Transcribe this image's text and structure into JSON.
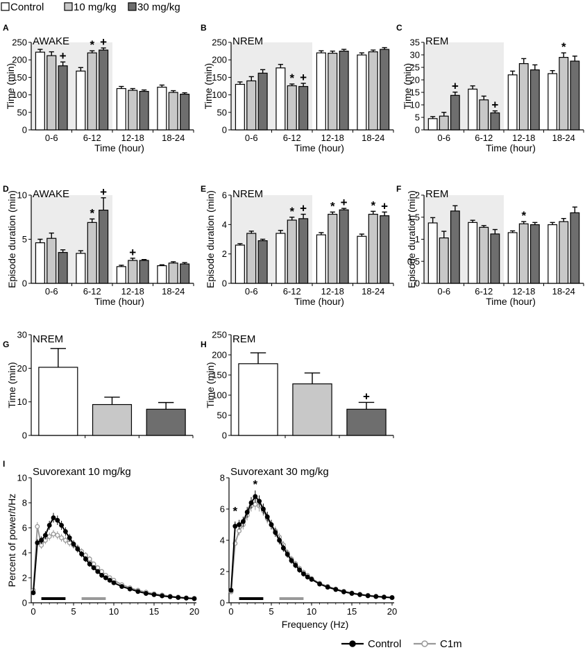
{
  "legend": [
    {
      "label": "Control",
      "color": "#ffffff"
    },
    {
      "label": "10 mg/kg",
      "color": "#c8c8c8"
    },
    {
      "label": "30 mg/kg",
      "color": "#6e6e6e"
    }
  ],
  "bottom_legend": [
    {
      "label": "Control",
      "color": "#000000"
    },
    {
      "label": "C1m",
      "color": "#999999"
    }
  ],
  "chart_data": [
    {
      "id": "A",
      "type": "bar",
      "title": "AWAKE",
      "ylabel": "Time (min)",
      "xlabel": "Time (hour)",
      "ylim": [
        0,
        250
      ],
      "yticks": [
        0,
        50,
        100,
        150,
        200,
        250
      ],
      "categories": [
        "0-6",
        "6-12",
        "12-18",
        "18-24"
      ],
      "shade_until": 2,
      "series": [
        {
          "name": "Control",
          "values": [
            222,
            168,
            118,
            122
          ],
          "errors": [
            8,
            10,
            6,
            6
          ]
        },
        {
          "name": "10 mg/kg",
          "values": [
            212,
            220,
            113,
            107
          ],
          "errors": [
            11,
            6,
            5,
            5
          ]
        },
        {
          "name": "30 mg/kg",
          "values": [
            183,
            228,
            110,
            102
          ],
          "errors": [
            11,
            6,
            4,
            4
          ]
        }
      ],
      "markers": [
        {
          "category": 0,
          "series": 2,
          "symbol": "+"
        },
        {
          "category": 1,
          "series": 1,
          "symbol": "*"
        },
        {
          "category": 1,
          "series": 2,
          "symbol": "+"
        }
      ]
    },
    {
      "id": "B",
      "type": "bar",
      "title": "NREM",
      "ylabel": "Time (min)",
      "xlabel": "",
      "ylim": [
        0,
        250
      ],
      "yticks": [
        0,
        50,
        100,
        150,
        200,
        250
      ],
      "categories": [
        "0-6",
        "6-12",
        "12-18",
        "18-24"
      ],
      "shade_until": 2,
      "series": [
        {
          "name": "Control",
          "values": [
            130,
            177,
            220,
            214
          ],
          "errors": [
            7,
            10,
            6,
            6
          ]
        },
        {
          "name": "10 mg/kg",
          "values": [
            140,
            126,
            219,
            223
          ],
          "errors": [
            12,
            5,
            6,
            5
          ]
        },
        {
          "name": "30 mg/kg",
          "values": [
            162,
            124,
            225,
            230
          ],
          "errors": [
            10,
            9,
            5,
            5
          ]
        }
      ],
      "markers": [
        {
          "category": 1,
          "series": 1,
          "symbol": "*"
        },
        {
          "category": 1,
          "series": 2,
          "symbol": "+"
        }
      ]
    },
    {
      "id": "C",
      "type": "bar",
      "title": "REM",
      "ylabel": "Time (min)",
      "xlabel": "Time (hour)",
      "ylim": [
        0,
        35
      ],
      "yticks": [
        0,
        5,
        10,
        15,
        20,
        25,
        30,
        35
      ],
      "categories": [
        "0-6",
        "6-12",
        "12-18",
        "18-24"
      ],
      "shade_until": 2,
      "series": [
        {
          "name": "Control",
          "values": [
            4.5,
            16.3,
            22,
            22.5
          ],
          "errors": [
            0.8,
            1.3,
            1.5,
            1.2
          ]
        },
        {
          "name": "10 mg/kg",
          "values": [
            5.5,
            12,
            26.5,
            29
          ],
          "errors": [
            1.5,
            1.5,
            2.0,
            1.8
          ]
        },
        {
          "name": "30 mg/kg",
          "values": [
            13.8,
            6.8,
            24,
            27.5
          ],
          "errors": [
            1.3,
            0.8,
            2.0,
            2.0
          ]
        }
      ],
      "markers": [
        {
          "category": 0,
          "series": 2,
          "symbol": "+"
        },
        {
          "category": 1,
          "series": 2,
          "symbol": "+"
        },
        {
          "category": 3,
          "series": 1,
          "symbol": "*"
        }
      ]
    },
    {
      "id": "D",
      "type": "bar",
      "title": "AWAKE",
      "ylabel": "Episode duration (min)",
      "xlabel": "Time (hour)",
      "ylim": [
        0,
        10
      ],
      "yticks": [
        0,
        5,
        10
      ],
      "categories": [
        "0-6",
        "6-12",
        "12-18",
        "18-24"
      ],
      "shade_until": 2,
      "series": [
        {
          "name": "Control",
          "values": [
            4.6,
            3.4,
            1.9,
            2.0
          ],
          "errors": [
            0.4,
            0.3,
            0.15,
            0.1
          ]
        },
        {
          "name": "10 mg/kg",
          "values": [
            5.1,
            6.9,
            2.6,
            2.3
          ],
          "errors": [
            0.6,
            0.4,
            0.25,
            0.15
          ]
        },
        {
          "name": "30 mg/kg",
          "values": [
            3.5,
            8.3,
            2.6,
            2.2
          ],
          "errors": [
            0.3,
            1.4,
            0.1,
            0.15
          ]
        }
      ],
      "markers": [
        {
          "category": 1,
          "series": 1,
          "symbol": "*"
        },
        {
          "category": 1,
          "series": 2,
          "symbol": "+"
        },
        {
          "category": 2,
          "series": 1,
          "symbol": "+"
        }
      ]
    },
    {
      "id": "E",
      "type": "bar",
      "title": "NREM",
      "ylabel": "Episode duration (min)",
      "xlabel": "Time (hour)",
      "ylim": [
        0,
        6
      ],
      "yticks": [
        0,
        2,
        4,
        6
      ],
      "categories": [
        "0-6",
        "6-12",
        "12-18",
        "18-24"
      ],
      "shade_until": 2,
      "series": [
        {
          "name": "Control",
          "values": [
            2.6,
            3.4,
            3.3,
            3.2
          ],
          "errors": [
            0.1,
            0.2,
            0.15,
            0.15
          ]
        },
        {
          "name": "10 mg/kg",
          "values": [
            3.4,
            4.3,
            4.7,
            4.7
          ],
          "errors": [
            0.15,
            0.2,
            0.15,
            0.2
          ]
        },
        {
          "name": "30 mg/kg",
          "values": [
            2.9,
            4.4,
            5.0,
            4.6
          ],
          "errors": [
            0.1,
            0.3,
            0.1,
            0.25
          ]
        }
      ],
      "markers": [
        {
          "category": 1,
          "series": 1,
          "symbol": "*"
        },
        {
          "category": 1,
          "series": 2,
          "symbol": "+"
        },
        {
          "category": 2,
          "series": 1,
          "symbol": "*"
        },
        {
          "category": 2,
          "series": 2,
          "symbol": "+"
        },
        {
          "category": 3,
          "series": 1,
          "symbol": "*"
        },
        {
          "category": 3,
          "series": 2,
          "symbol": "+"
        }
      ]
    },
    {
      "id": "F",
      "type": "bar",
      "title": "REM",
      "ylabel": "Episode duration (min)",
      "xlabel": "Time (hour)",
      "ylim": [
        0,
        2
      ],
      "yticks": [
        0,
        0.5,
        1,
        1.5,
        2
      ],
      "categories": [
        "0-6",
        "6-12",
        "12-18",
        "18-24"
      ],
      "shade_until": 2,
      "series": [
        {
          "name": "Control",
          "values": [
            1.37,
            1.38,
            1.15,
            1.33
          ],
          "errors": [
            0.12,
            0.05,
            0.04,
            0.05
          ]
        },
        {
          "name": "10 mg/kg",
          "values": [
            1.03,
            1.27,
            1.35,
            1.4
          ],
          "errors": [
            0.15,
            0.04,
            0.05,
            0.07
          ]
        },
        {
          "name": "30 mg/kg",
          "values": [
            1.64,
            1.12,
            1.33,
            1.6
          ],
          "errors": [
            0.12,
            0.1,
            0.05,
            0.13
          ]
        }
      ],
      "markers": [
        {
          "category": 2,
          "series": 1,
          "symbol": "*"
        }
      ]
    },
    {
      "id": "G",
      "type": "bar",
      "title": "NREM",
      "ylabel": "Time (min)",
      "xlabel": "",
      "ylim": [
        0,
        30
      ],
      "yticks": [
        0,
        10,
        20,
        30
      ],
      "categories": [
        "Control",
        "10 mg/kg",
        "30 mg/kg"
      ],
      "values": [
        20.3,
        9.2,
        7.8
      ],
      "errors": [
        5.6,
        2.2,
        2.0
      ],
      "markers": []
    },
    {
      "id": "H",
      "type": "bar",
      "title": "REM",
      "ylabel": "Time (min)",
      "xlabel": "",
      "ylim": [
        0,
        250
      ],
      "yticks": [
        0,
        50,
        100,
        150,
        200,
        250
      ],
      "categories": [
        "Control",
        "10 mg/kg",
        "30 mg/kg"
      ],
      "values": [
        178,
        128,
        65
      ],
      "errors": [
        27,
        27,
        17
      ],
      "markers": [
        {
          "category": 2,
          "symbol": "+"
        }
      ]
    },
    {
      "id": "I1",
      "type": "line",
      "title": "Suvorexant 10 mg/kg",
      "ylabel": "Percent of power/t/Hz",
      "xlabel": "",
      "xlim": [
        0,
        20
      ],
      "xticks": [
        0,
        5,
        10,
        15,
        20
      ],
      "ylim": [
        0,
        10
      ],
      "yticks": [
        0,
        2,
        4,
        6,
        8,
        10
      ],
      "x": [
        0,
        0.5,
        1,
        1.5,
        2,
        2.5,
        3,
        3.5,
        4,
        4.5,
        5,
        5.5,
        6,
        6.5,
        7,
        7.5,
        8,
        8.5,
        9,
        9.5,
        10,
        11,
        12,
        13,
        14,
        15,
        16,
        17,
        18,
        19,
        20
      ],
      "series": [
        {
          "name": "Control",
          "values": [
            0.8,
            4.8,
            5.0,
            5.4,
            6.2,
            6.8,
            6.6,
            6.2,
            5.7,
            5.2,
            4.7,
            4.3,
            3.9,
            3.5,
            3.1,
            2.8,
            2.5,
            2.2,
            2.0,
            1.8,
            1.6,
            1.3,
            1.1,
            0.9,
            0.75,
            0.65,
            0.55,
            0.48,
            0.42,
            0.37,
            0.33
          ]
        },
        {
          "name": "C1m",
          "values": [
            1.0,
            6.1,
            4.6,
            5.0,
            5.3,
            5.5,
            5.4,
            5.2,
            5.0,
            4.8,
            4.6,
            4.4,
            4.1,
            3.8,
            3.5,
            3.1,
            2.8,
            2.5,
            2.2,
            2.0,
            1.8,
            1.45,
            1.2,
            1.0,
            0.85,
            0.72,
            0.62,
            0.53,
            0.46,
            0.4,
            0.36
          ]
        }
      ],
      "bars": [
        {
          "from": 1,
          "to": 4,
          "color": "#000000"
        },
        {
          "from": 6,
          "to": 9,
          "color": "#999999"
        }
      ],
      "markers": []
    },
    {
      "id": "I2",
      "type": "line",
      "title": "Suvorexant 30 mg/kg",
      "ylabel": "",
      "xlabel": "Frequency (Hz)",
      "xlim": [
        0,
        20
      ],
      "xticks": [
        0,
        5,
        10,
        15,
        20
      ],
      "ylim": [
        0,
        8
      ],
      "yticks": [
        0,
        2,
        4,
        6,
        8
      ],
      "x": [
        0,
        0.5,
        1,
        1.5,
        2,
        2.5,
        3,
        3.5,
        4,
        4.5,
        5,
        5.5,
        6,
        6.5,
        7,
        7.5,
        8,
        8.5,
        9,
        9.5,
        10,
        11,
        12,
        13,
        14,
        15,
        16,
        17,
        18,
        19,
        20
      ],
      "series": [
        {
          "name": "Control",
          "values": [
            0.8,
            4.9,
            5.0,
            5.2,
            5.8,
            6.4,
            6.8,
            6.5,
            6.0,
            5.5,
            5.0,
            4.5,
            4.0,
            3.5,
            3.1,
            2.7,
            2.4,
            2.1,
            1.85,
            1.65,
            1.5,
            1.2,
            1.0,
            0.85,
            0.7,
            0.6,
            0.52,
            0.45,
            0.4,
            0.36,
            0.33
          ]
        },
        {
          "name": "C1m",
          "values": [
            0.7,
            3.8,
            4.6,
            5.0,
            5.6,
            6.2,
            6.3,
            6.2,
            5.9,
            5.4,
            5.0,
            4.6,
            4.2,
            3.7,
            3.2,
            2.8,
            2.5,
            2.2,
            1.95,
            1.75,
            1.55,
            1.25,
            1.05,
            0.88,
            0.74,
            0.63,
            0.55,
            0.48,
            0.42,
            0.38,
            0.34
          ]
        }
      ],
      "bars": [
        {
          "from": 1,
          "to": 4,
          "color": "#000000"
        },
        {
          "from": 6,
          "to": 9,
          "color": "#999999"
        }
      ],
      "markers": [
        {
          "x": 0.5,
          "y": 5.9,
          "symbol": "*"
        },
        {
          "x": 3,
          "y": 7.6,
          "symbol": "*"
        }
      ]
    }
  ]
}
